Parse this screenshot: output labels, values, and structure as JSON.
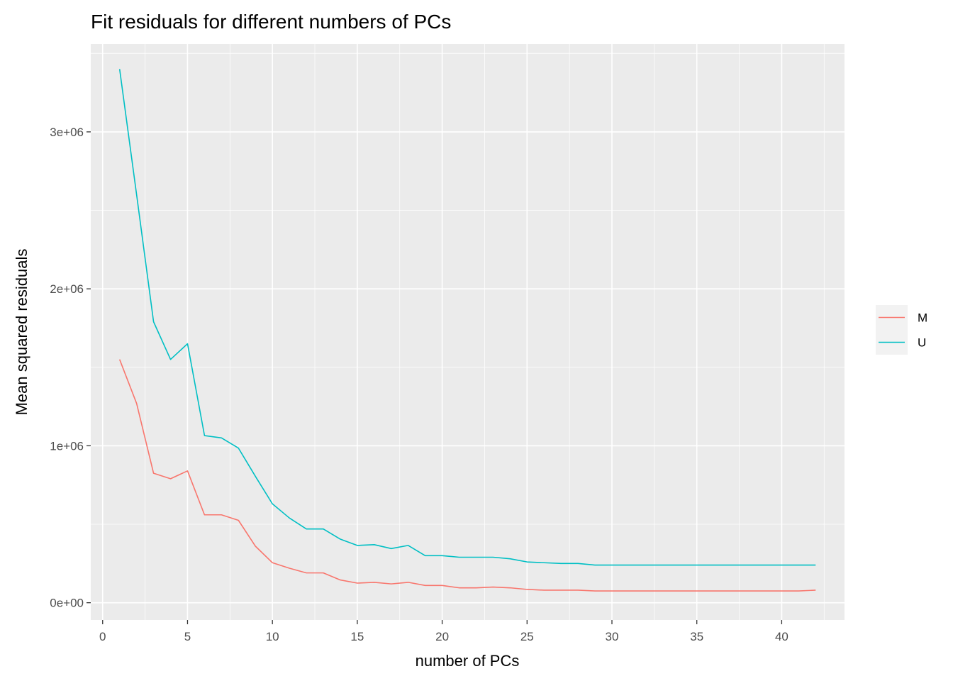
{
  "chart_data": {
    "type": "line",
    "title": "Fit residuals for different numbers of PCs",
    "xlabel": "number of PCs",
    "ylabel": "Mean squared residuals",
    "xlim": [
      -0.7,
      43.7
    ],
    "ylim": [
      -110000,
      3560000
    ],
    "x_ticks": [
      0,
      5,
      10,
      15,
      20,
      25,
      30,
      35,
      40
    ],
    "x_minor_ticks": [
      2.5,
      7.5,
      12.5,
      17.5,
      22.5,
      27.5,
      32.5,
      37.5,
      42.5
    ],
    "y_ticks": [
      0,
      1000000,
      2000000,
      3000000
    ],
    "y_tick_labels": [
      "0e+00",
      "1e+06",
      "2e+06",
      "3e+06"
    ],
    "y_minor_ticks": [
      500000,
      1500000,
      2500000,
      3500000
    ],
    "grid": true,
    "legend_position": "right",
    "background": "#ebebeb",
    "grid_color": "#ffffff",
    "x": [
      1,
      2,
      3,
      4,
      5,
      6,
      7,
      8,
      9,
      10,
      11,
      12,
      13,
      14,
      15,
      16,
      17,
      18,
      19,
      20,
      21,
      22,
      23,
      24,
      25,
      26,
      27,
      28,
      29,
      30,
      31,
      32,
      33,
      34,
      35,
      36,
      37,
      38,
      39,
      40,
      41,
      42
    ],
    "series": [
      {
        "name": "M",
        "color": "#f8766d",
        "values": [
          1550000,
          1270000,
          825000,
          790000,
          840000,
          560000,
          560000,
          525000,
          360000,
          255000,
          220000,
          190000,
          190000,
          145000,
          125000,
          130000,
          120000,
          130000,
          110000,
          110000,
          95000,
          95000,
          100000,
          95000,
          85000,
          80000,
          80000,
          80000,
          75000,
          75000,
          75000,
          75000,
          75000,
          75000,
          75000,
          75000,
          75000,
          75000,
          75000,
          75000,
          75000,
          80000
        ]
      },
      {
        "name": "U",
        "color": "#00bfc4",
        "values": [
          3400000,
          2600000,
          1790000,
          1550000,
          1650000,
          1065000,
          1050000,
          985000,
          805000,
          630000,
          540000,
          470000,
          470000,
          405000,
          365000,
          370000,
          345000,
          365000,
          300000,
          300000,
          290000,
          290000,
          290000,
          280000,
          260000,
          255000,
          250000,
          250000,
          240000,
          240000,
          240000,
          240000,
          240000,
          240000,
          240000,
          240000,
          240000,
          240000,
          240000,
          240000,
          240000,
          240000
        ]
      }
    ]
  }
}
